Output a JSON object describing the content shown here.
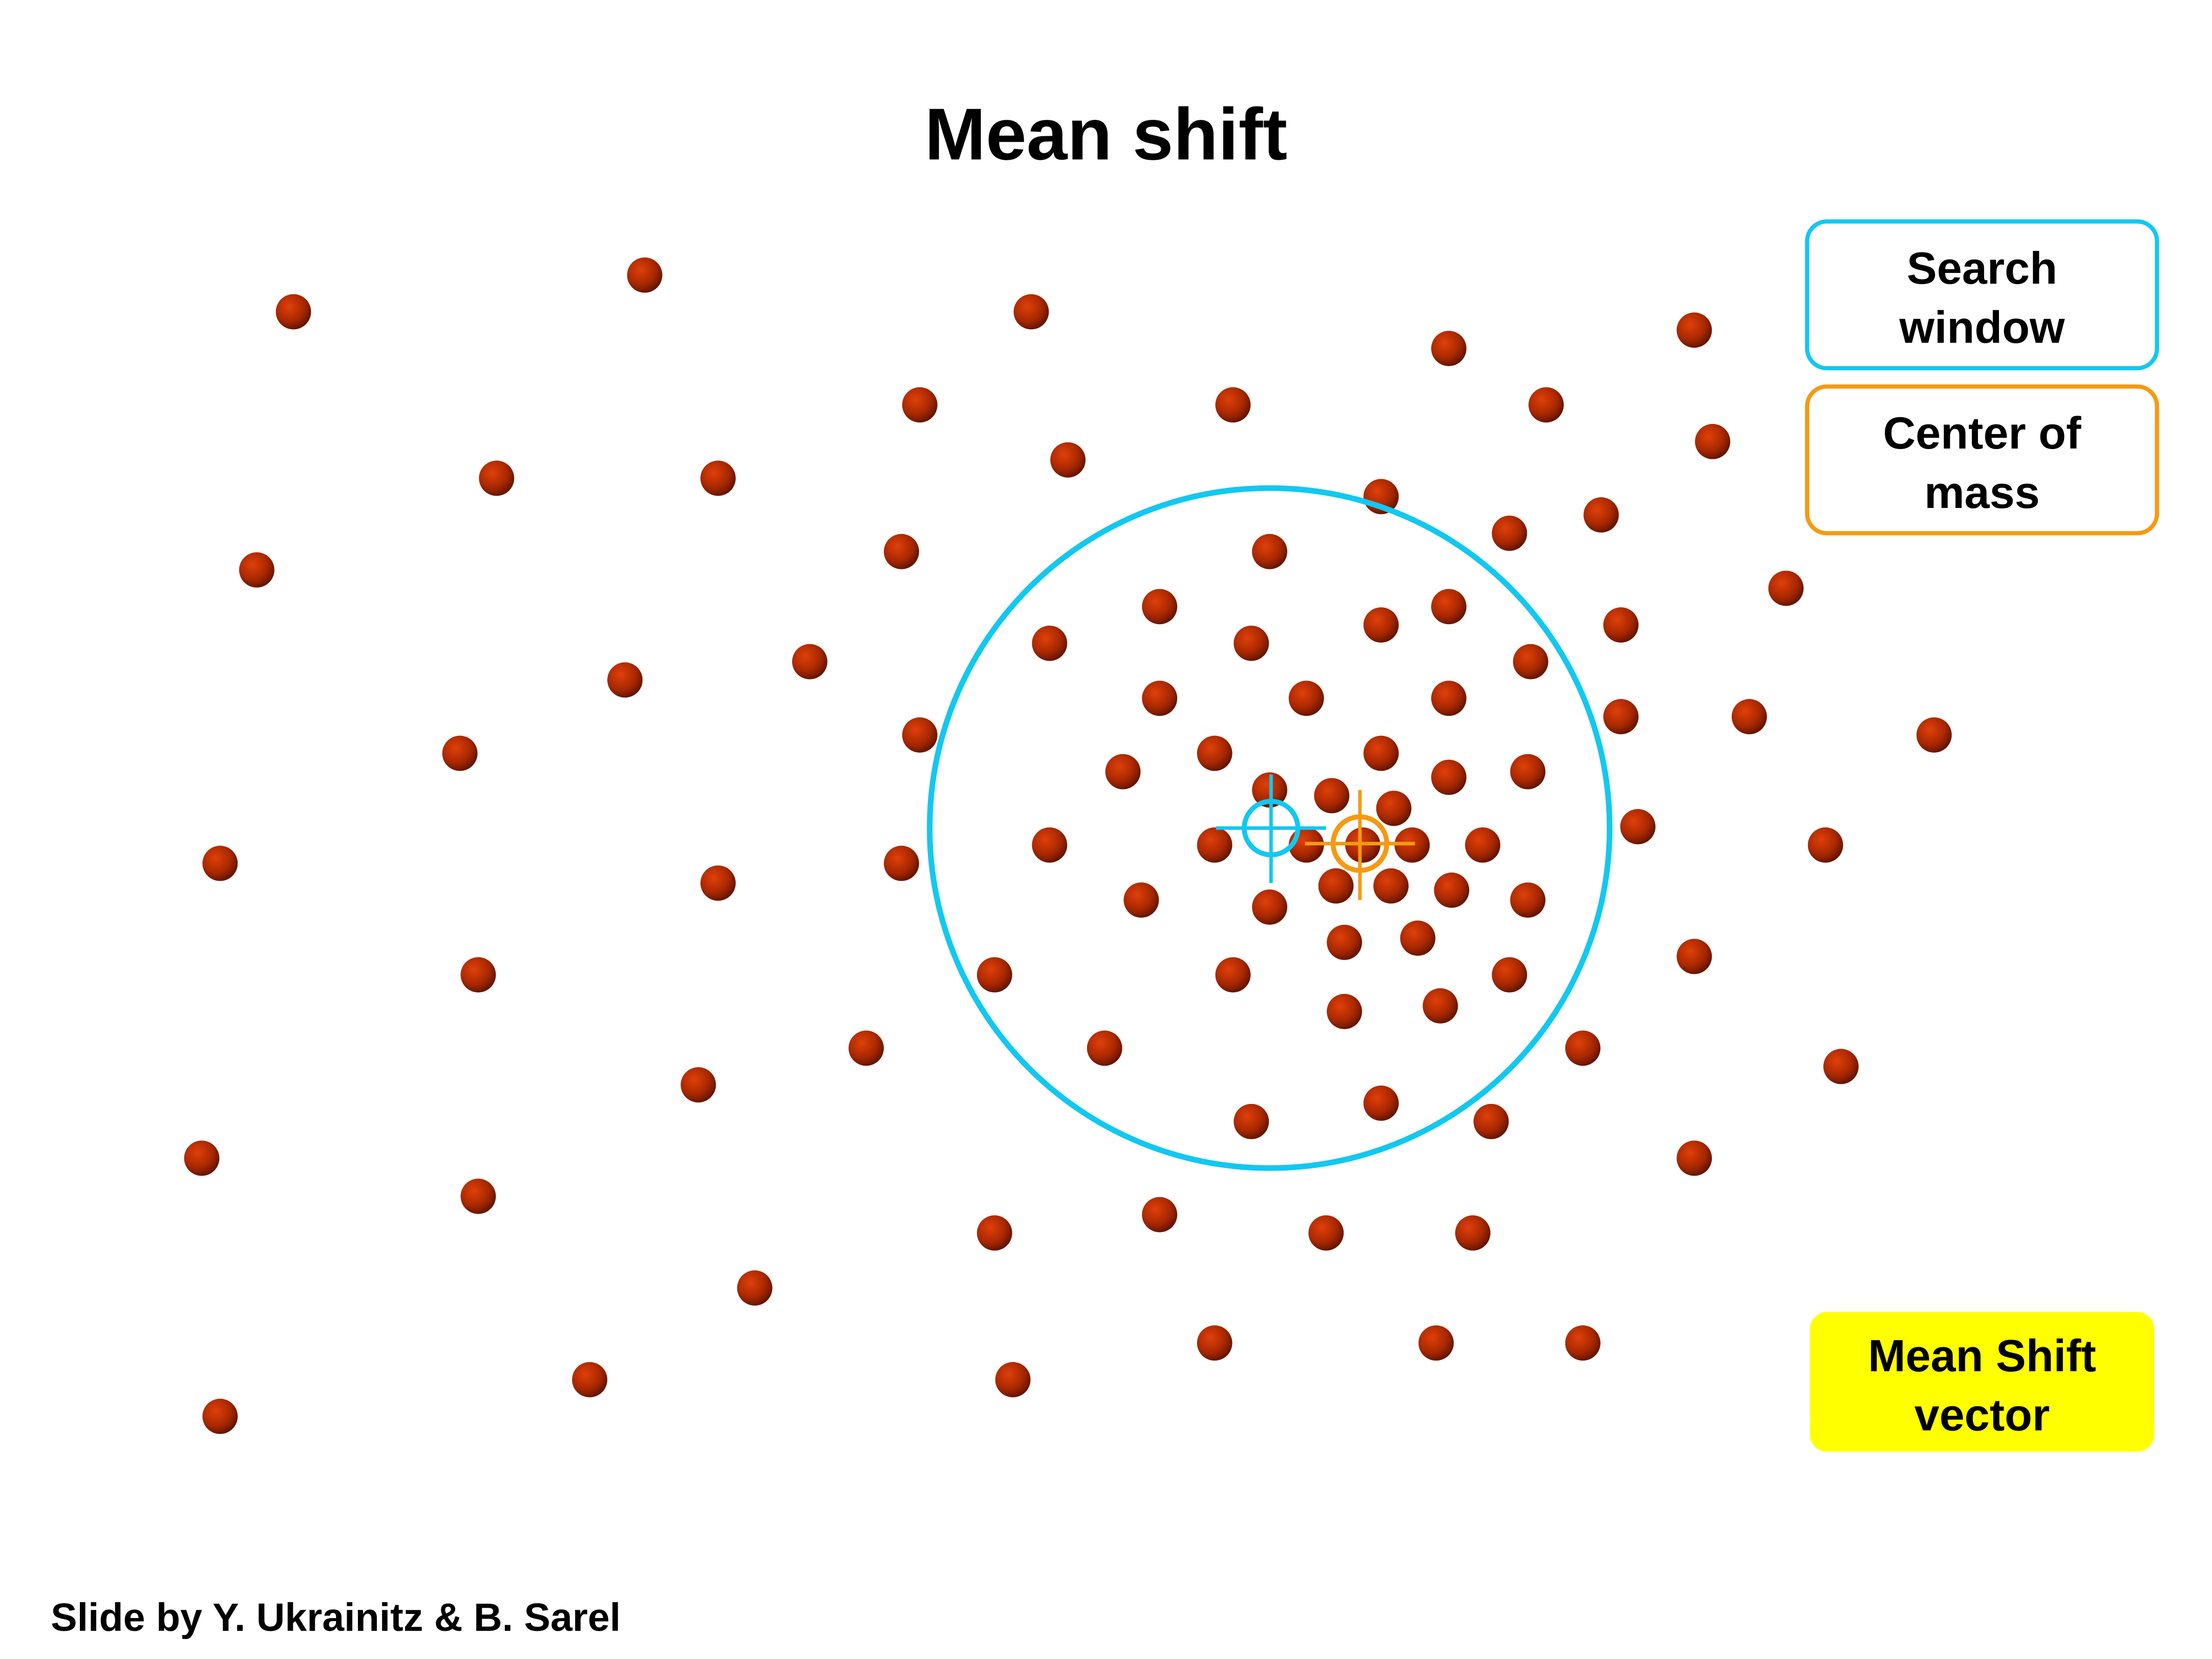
{
  "title": "Mean shift",
  "legend": [
    {
      "lines": [
        "Search",
        "window"
      ]
    },
    {
      "lines": [
        "Center of",
        "mass"
      ]
    },
    {
      "lines": [
        "Mean Shift",
        "vector"
      ]
    }
  ],
  "footer": "Slide by Y. Ukrainitz & B. Sarel"
}
